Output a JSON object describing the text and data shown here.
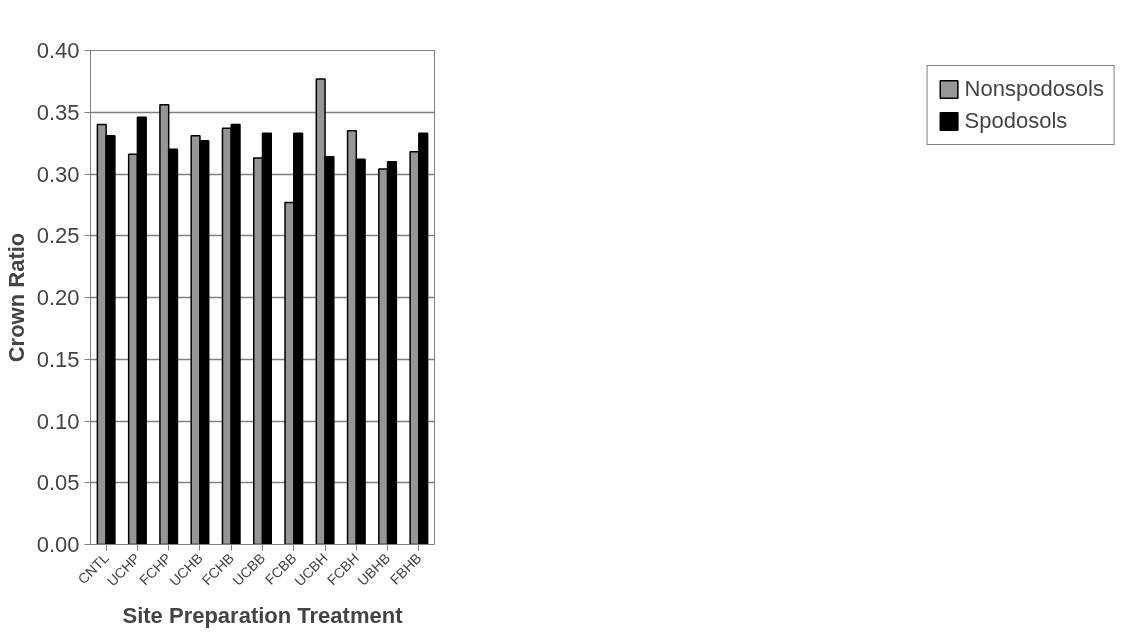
{
  "chart_data": {
    "type": "bar",
    "xlabel": "Site Preparation Treatment",
    "ylabel": "Crown Ratio",
    "categories": [
      "CNTL",
      "UCHP",
      "FCHP",
      "UCHB",
      "FCHB",
      "UCBB",
      "FCBB",
      "UCBH",
      "FCBH",
      "UBHB",
      "FBHB"
    ],
    "series": [
      {
        "name": "Nonspodosols",
        "color": "#969696",
        "values": [
          0.34,
          0.316,
          0.356,
          0.331,
          0.337,
          0.313,
          0.277,
          0.377,
          0.335,
          0.304,
          0.318
        ]
      },
      {
        "name": "Spodosols",
        "color": "#000000",
        "values": [
          0.331,
          0.346,
          0.32,
          0.327,
          0.34,
          0.333,
          0.333,
          0.314,
          0.312,
          0.31,
          0.333
        ]
      }
    ],
    "ylim": [
      0,
      0.4
    ],
    "yticks": [
      {
        "value": 0,
        "label": "0.00"
      },
      {
        "value": 0.05,
        "label": "0.05"
      },
      {
        "value": 0.1,
        "label": "0.10"
      },
      {
        "value": 0.15,
        "label": "0.15"
      },
      {
        "value": 0.2,
        "label": "0.20"
      },
      {
        "value": 0.25,
        "label": "0.25"
      },
      {
        "value": 0.3,
        "label": "0.30"
      },
      {
        "value": 0.35,
        "label": "0.35"
      },
      {
        "value": 0.4,
        "label": "0.40"
      }
    ],
    "grid": "y",
    "legend": "right"
  }
}
